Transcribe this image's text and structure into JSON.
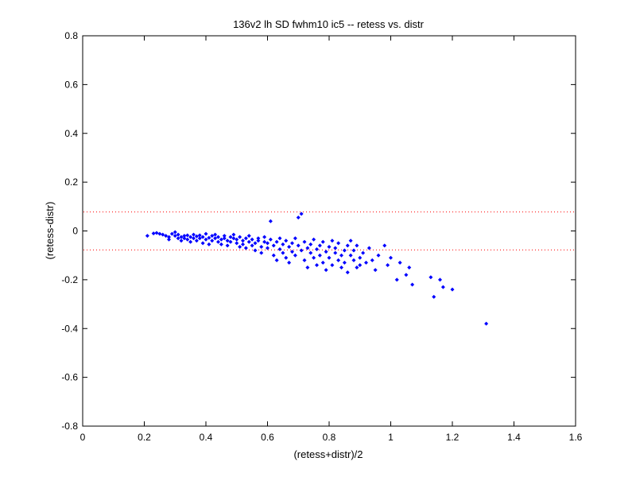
{
  "chart_data": {
    "type": "scatter",
    "title": "136v2 lh SD fwhm10 ic5 -- retess vs. distr",
    "xlabel": "(retess+distr)/2",
    "ylabel": "(retess-distr)",
    "xlim": [
      0,
      1.6
    ],
    "ylim": [
      -0.8,
      0.8
    ],
    "xticks": [
      0,
      0.2,
      0.4,
      0.6,
      0.8,
      1,
      1.2,
      1.4,
      1.6
    ],
    "xtick_labels": [
      "0",
      "0.2",
      "0.4",
      "0.6",
      "0.8",
      "1",
      "1.2",
      "1.4",
      "1.6"
    ],
    "yticks": [
      -0.8,
      -0.6,
      -0.4,
      -0.2,
      0,
      0.2,
      0.4,
      0.6,
      0.8
    ],
    "ytick_labels": [
      "-0.8",
      "-0.6",
      "-0.4",
      "-0.2",
      "0",
      "0.2",
      "0.4",
      "0.6",
      "0.8"
    ],
    "grid": false,
    "reference_lines": [
      {
        "y": 0.078,
        "color": "#ff0000",
        "style": "dotted"
      },
      {
        "y": -0.078,
        "color": "#ff0000",
        "style": "dotted"
      }
    ],
    "marker_color": "#0000ff",
    "series": [
      {
        "points": [
          [
            0.21,
            -0.02
          ],
          [
            0.23,
            -0.01
          ],
          [
            0.24,
            -0.008
          ],
          [
            0.25,
            -0.012
          ],
          [
            0.26,
            -0.015
          ],
          [
            0.27,
            -0.02
          ],
          [
            0.28,
            -0.025
          ],
          [
            0.28,
            -0.035
          ],
          [
            0.29,
            -0.012
          ],
          [
            0.3,
            -0.005
          ],
          [
            0.3,
            -0.02
          ],
          [
            0.31,
            -0.03
          ],
          [
            0.31,
            -0.015
          ],
          [
            0.32,
            -0.025
          ],
          [
            0.32,
            -0.04
          ],
          [
            0.33,
            -0.02
          ],
          [
            0.33,
            -0.03
          ],
          [
            0.34,
            -0.018
          ],
          [
            0.34,
            -0.035
          ],
          [
            0.35,
            -0.025
          ],
          [
            0.35,
            -0.045
          ],
          [
            0.36,
            -0.015
          ],
          [
            0.36,
            -0.03
          ],
          [
            0.37,
            -0.022
          ],
          [
            0.37,
            -0.04
          ],
          [
            0.38,
            -0.018
          ],
          [
            0.38,
            -0.03
          ],
          [
            0.39,
            -0.05
          ],
          [
            0.39,
            -0.025
          ],
          [
            0.4,
            -0.012
          ],
          [
            0.4,
            -0.035
          ],
          [
            0.41,
            -0.028
          ],
          [
            0.41,
            -0.055
          ],
          [
            0.42,
            -0.02
          ],
          [
            0.42,
            -0.04
          ],
          [
            0.43,
            -0.03
          ],
          [
            0.43,
            -0.015
          ],
          [
            0.44,
            -0.045
          ],
          [
            0.44,
            -0.025
          ],
          [
            0.45,
            -0.035
          ],
          [
            0.45,
            -0.055
          ],
          [
            0.46,
            -0.02
          ],
          [
            0.46,
            -0.03
          ],
          [
            0.47,
            -0.04
          ],
          [
            0.47,
            -0.06
          ],
          [
            0.48,
            -0.025
          ],
          [
            0.48,
            -0.045
          ],
          [
            0.49,
            -0.03
          ],
          [
            0.49,
            -0.015
          ],
          [
            0.5,
            -0.05
          ],
          [
            0.5,
            -0.035
          ],
          [
            0.51,
            -0.065
          ],
          [
            0.51,
            -0.025
          ],
          [
            0.52,
            -0.04
          ],
          [
            0.52,
            -0.055
          ],
          [
            0.53,
            -0.03
          ],
          [
            0.53,
            -0.07
          ],
          [
            0.54,
            -0.045
          ],
          [
            0.54,
            -0.02
          ],
          [
            0.55,
            -0.06
          ],
          [
            0.55,
            -0.035
          ],
          [
            0.56,
            -0.05
          ],
          [
            0.56,
            -0.08
          ],
          [
            0.57,
            -0.04
          ],
          [
            0.57,
            -0.03
          ],
          [
            0.58,
            -0.065
          ],
          [
            0.58,
            -0.09
          ],
          [
            0.59,
            -0.045
          ],
          [
            0.59,
            -0.025
          ],
          [
            0.6,
            -0.07
          ],
          [
            0.6,
            -0.05
          ],
          [
            0.61,
            0.04
          ],
          [
            0.61,
            -0.035
          ],
          [
            0.62,
            -0.06
          ],
          [
            0.62,
            -0.1
          ],
          [
            0.63,
            -0.045
          ],
          [
            0.63,
            -0.12
          ],
          [
            0.64,
            -0.075
          ],
          [
            0.64,
            -0.03
          ],
          [
            0.65,
            -0.055
          ],
          [
            0.65,
            -0.09
          ],
          [
            0.66,
            -0.04
          ],
          [
            0.66,
            -0.11
          ],
          [
            0.67,
            -0.065
          ],
          [
            0.67,
            -0.13
          ],
          [
            0.68,
            -0.05
          ],
          [
            0.68,
            -0.085
          ],
          [
            0.69,
            -0.03
          ],
          [
            0.69,
            -0.1
          ],
          [
            0.7,
            0.055
          ],
          [
            0.7,
            -0.06
          ],
          [
            0.71,
            0.07
          ],
          [
            0.71,
            -0.08
          ],
          [
            0.72,
            -0.045
          ],
          [
            0.72,
            -0.12
          ],
          [
            0.73,
            -0.07
          ],
          [
            0.73,
            -0.15
          ],
          [
            0.74,
            -0.055
          ],
          [
            0.74,
            -0.09
          ],
          [
            0.75,
            -0.035
          ],
          [
            0.75,
            -0.11
          ],
          [
            0.76,
            -0.075
          ],
          [
            0.76,
            -0.14
          ],
          [
            0.77,
            -0.06
          ],
          [
            0.77,
            -0.1
          ],
          [
            0.78,
            -0.045
          ],
          [
            0.78,
            -0.13
          ],
          [
            0.79,
            -0.085
          ],
          [
            0.79,
            -0.16
          ],
          [
            0.8,
            -0.065
          ],
          [
            0.8,
            -0.11
          ],
          [
            0.81,
            -0.04
          ],
          [
            0.81,
            -0.14
          ],
          [
            0.82,
            -0.09
          ],
          [
            0.82,
            -0.07
          ],
          [
            0.83,
            -0.12
          ],
          [
            0.83,
            -0.05
          ],
          [
            0.84,
            -0.1
          ],
          [
            0.84,
            -0.15
          ],
          [
            0.85,
            -0.08
          ],
          [
            0.85,
            -0.13
          ],
          [
            0.86,
            -0.06
          ],
          [
            0.86,
            -0.17
          ],
          [
            0.87,
            -0.1
          ],
          [
            0.87,
            -0.04
          ],
          [
            0.88,
            -0.12
          ],
          [
            0.88,
            -0.08
          ],
          [
            0.89,
            -0.15
          ],
          [
            0.89,
            -0.06
          ],
          [
            0.9,
            -0.11
          ],
          [
            0.9,
            -0.14
          ],
          [
            0.91,
            -0.09
          ],
          [
            0.92,
            -0.13
          ],
          [
            0.93,
            -0.07
          ],
          [
            0.94,
            -0.12
          ],
          [
            0.95,
            -0.16
          ],
          [
            0.96,
            -0.1
          ],
          [
            0.98,
            -0.06
          ],
          [
            0.99,
            -0.14
          ],
          [
            1.0,
            -0.11
          ],
          [
            1.02,
            -0.2
          ],
          [
            1.03,
            -0.13
          ],
          [
            1.05,
            -0.18
          ],
          [
            1.06,
            -0.15
          ],
          [
            1.07,
            -0.22
          ],
          [
            1.13,
            -0.19
          ],
          [
            1.14,
            -0.27
          ],
          [
            1.16,
            -0.2
          ],
          [
            1.17,
            -0.23
          ],
          [
            1.2,
            -0.24
          ],
          [
            1.31,
            -0.38
          ]
        ]
      }
    ]
  }
}
